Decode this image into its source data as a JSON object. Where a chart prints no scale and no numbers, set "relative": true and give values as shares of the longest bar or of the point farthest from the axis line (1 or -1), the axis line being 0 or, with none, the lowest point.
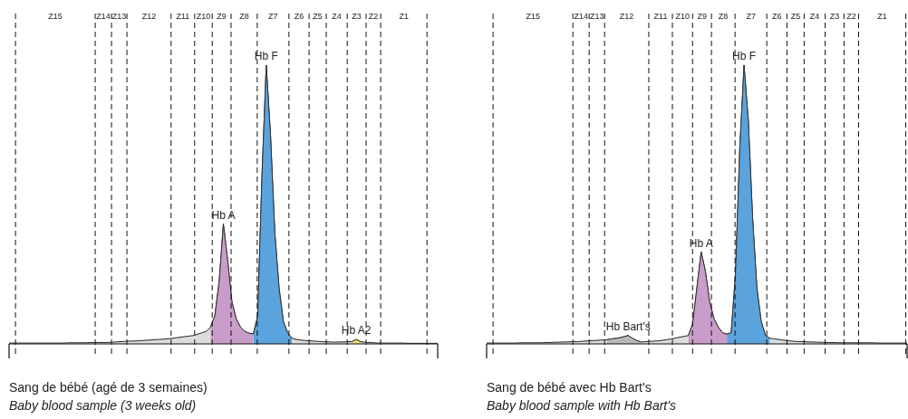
{
  "chart_data": [
    {
      "type": "area",
      "title": "Sang de bébé (agé de 3 semaines)",
      "subtitle": "Baby blood sample (3 weeks old)",
      "relative": true,
      "tick_labels": false,
      "grid": true,
      "categories": [
        null,
        null,
        null,
        null,
        null,
        null,
        null,
        null,
        null,
        null,
        null,
        null,
        null,
        null,
        null,
        null,
        null,
        null,
        null,
        null,
        null,
        null,
        null,
        null,
        null,
        null,
        null,
        null,
        null,
        null,
        null,
        null,
        null,
        null,
        null,
        null,
        null,
        null,
        null,
        null,
        null,
        null,
        null,
        null,
        null,
        null,
        null,
        null,
        null,
        null,
        null,
        null,
        null,
        null,
        null,
        null,
        null,
        null,
        null,
        null,
        null,
        null,
        null,
        null,
        null,
        null,
        null,
        null,
        null,
        null,
        null,
        null,
        null,
        null,
        null,
        null,
        null,
        null,
        null,
        null,
        null,
        null,
        null,
        null,
        null,
        null,
        null,
        null,
        null,
        null,
        null,
        null,
        null,
        null,
        null,
        null,
        null,
        null,
        null,
        null,
        null
      ],
      "annotations": [
        "Z15",
        "Z14",
        "Z13",
        "Z12",
        "Z11",
        "Z10",
        "Z9",
        "Z8",
        "Z7",
        "Z6",
        "Z5",
        "Z4",
        "Z3",
        "Z2",
        "Z1"
      ],
      "series": [
        {
          "color": "#dcdcdc",
          "values": [
            0.003,
            0.003,
            0.003,
            0.003,
            0.003,
            0.003,
            0.003,
            0.003,
            0.003,
            0.003,
            0.003,
            0.003,
            0.003,
            0.003,
            0.004,
            0.004,
            0.004,
            0.004,
            0.004,
            0.005,
            0.005,
            0.005,
            0.005,
            0.005,
            0.006,
            0.007,
            0.008,
            0.009,
            0.01,
            0.01,
            0.011,
            0.012,
            0.013,
            0.014,
            0.015,
            0.016,
            0.017,
            0.018,
            0.02,
            0.022,
            0.024,
            0.026,
            0.028,
            0.03,
            0.035,
            0.04,
            0.045,
            0.06,
            0.1,
            0.22,
            0.43,
            0.3,
            0.15,
            0.09,
            0.06,
            0.045,
            0.038,
            0.036,
            0.1,
            0.6,
            1,
            0.75,
            0.4,
            0.2,
            0.08,
            0.04,
            0.02,
            0.016,
            0.014,
            0.012,
            0.011,
            0.01,
            0.009,
            0.008,
            0.007,
            0.007,
            0.006,
            0.007,
            0.007,
            0.008,
            0.008,
            0.016,
            0.008,
            0.006,
            0.005,
            0.004,
            0.003,
            0.003,
            0.003,
            0.003,
            0.003,
            0.003,
            0.003,
            0.002,
            0.002,
            0.002,
            0.002,
            0.002,
            0.002,
            0.002,
            0.002
          ]
        },
        {
          "name": "Hb A",
          "color": "#c99cc9",
          "values": [
            null,
            null,
            null,
            null,
            null,
            null,
            null,
            null,
            null,
            null,
            null,
            null,
            null,
            null,
            null,
            null,
            null,
            null,
            null,
            null,
            null,
            null,
            null,
            null,
            null,
            null,
            null,
            null,
            null,
            null,
            null,
            null,
            null,
            null,
            null,
            null,
            null,
            null,
            null,
            null,
            null,
            null,
            null,
            null,
            null,
            null,
            null,
            0.06,
            0.1,
            0.22,
            0.43,
            0.3,
            0.15,
            0.09,
            0.06,
            0.045,
            0.038,
            0.036,
            null,
            null,
            null,
            null,
            null,
            null,
            null,
            null,
            null,
            null,
            null,
            null,
            null,
            null,
            null,
            null,
            null,
            null,
            null,
            null,
            null,
            null,
            null,
            null,
            null,
            null,
            null,
            null,
            null,
            null,
            null,
            null,
            null,
            null,
            null,
            null,
            null,
            null,
            null,
            null,
            null,
            null,
            null
          ]
        },
        {
          "name": "Hb F",
          "color": "#5ba3dc",
          "values": [
            null,
            null,
            null,
            null,
            null,
            null,
            null,
            null,
            null,
            null,
            null,
            null,
            null,
            null,
            null,
            null,
            null,
            null,
            null,
            null,
            null,
            null,
            null,
            null,
            null,
            null,
            null,
            null,
            null,
            null,
            null,
            null,
            null,
            null,
            null,
            null,
            null,
            null,
            null,
            null,
            null,
            null,
            null,
            null,
            null,
            null,
            null,
            null,
            null,
            null,
            null,
            null,
            null,
            null,
            null,
            null,
            null,
            0.036,
            0.1,
            0.6,
            1,
            0.75,
            0.4,
            0.2,
            0.08,
            0.04,
            0.02,
            null,
            null,
            null,
            null,
            null,
            null,
            null,
            null,
            null,
            null,
            null,
            null,
            null,
            null,
            null,
            null,
            null,
            null,
            null,
            null,
            null,
            null,
            null,
            null,
            null,
            null,
            null,
            null,
            null,
            null,
            null,
            null,
            null,
            null
          ]
        },
        {
          "name": "Hb A2",
          "color": "#e8e07a",
          "values": [
            null,
            null,
            null,
            null,
            null,
            null,
            null,
            null,
            null,
            null,
            null,
            null,
            null,
            null,
            null,
            null,
            null,
            null,
            null,
            null,
            null,
            null,
            null,
            null,
            null,
            null,
            null,
            null,
            null,
            null,
            null,
            null,
            null,
            null,
            null,
            null,
            null,
            null,
            null,
            null,
            null,
            null,
            null,
            null,
            null,
            null,
            null,
            null,
            null,
            null,
            null,
            null,
            null,
            null,
            null,
            null,
            null,
            null,
            null,
            null,
            null,
            null,
            null,
            null,
            null,
            null,
            null,
            null,
            null,
            null,
            null,
            null,
            null,
            null,
            null,
            null,
            null,
            null,
            null,
            null,
            0.008,
            0.016,
            0.008,
            null,
            null,
            null,
            null,
            null,
            null,
            null,
            null,
            null,
            null,
            null,
            null,
            null,
            null,
            null,
            null,
            null,
            null
          ]
        }
      ]
    },
    {
      "type": "area",
      "title": "Sang de bébé avec Hb Bart's",
      "subtitle": "Baby blood sample with Hb Bart's",
      "relative": true,
      "tick_labels": false,
      "grid": true,
      "categories": [
        null,
        null,
        null,
        null,
        null,
        null,
        null,
        null,
        null,
        null,
        null,
        null,
        null,
        null,
        null,
        null,
        null,
        null,
        null,
        null,
        null,
        null,
        null,
        null,
        null,
        null,
        null,
        null,
        null,
        null,
        null,
        null,
        null,
        null,
        null,
        null,
        null,
        null,
        null,
        null,
        null,
        null,
        null,
        null,
        null,
        null,
        null,
        null,
        null,
        null,
        null,
        null,
        null,
        null,
        null,
        null,
        null,
        null,
        null,
        null,
        null,
        null,
        null,
        null,
        null,
        null,
        null,
        null,
        null,
        null,
        null,
        null,
        null,
        null,
        null,
        null,
        null,
        null,
        null,
        null,
        null,
        null,
        null,
        null,
        null,
        null,
        null,
        null,
        null,
        null,
        null,
        null,
        null,
        null,
        null,
        null,
        null,
        null,
        null
      ],
      "annotations": [
        "Z15",
        "Z14",
        "Z13",
        "Z12",
        "Z11",
        "Z10",
        "Z9",
        "Z8",
        "Z7",
        "Z6",
        "Z5",
        "Z4",
        "Z3",
        "Z2",
        "Z1"
      ],
      "series": [
        {
          "color": "#dcdcdc",
          "values": [
            0.003,
            0.003,
            0.003,
            0.003,
            0.003,
            0.003,
            0.003,
            0.003,
            0.004,
            0.004,
            0.004,
            0.004,
            0.004,
            0.004,
            0.005,
            0.005,
            0.006,
            0.006,
            0.007,
            0.007,
            0.008,
            0.008,
            0.009,
            0.01,
            0.011,
            0.012,
            0.013,
            0.014,
            0.015,
            0.017,
            0.02,
            0.022,
            0.026,
            0.03,
            0.02,
            0.012,
            0.007,
            0.008,
            0.009,
            0.01,
            0.011,
            0.013,
            0.015,
            0.018,
            0.021,
            0.024,
            0.027,
            0.03,
            0.07,
            0.2,
            0.33,
            0.26,
            0.15,
            0.09,
            0.06,
            0.04,
            0.035,
            0.04,
            0.25,
            0.7,
            1,
            0.8,
            0.45,
            0.2,
            0.08,
            0.03,
            0.02,
            0.018,
            0.016,
            0.014,
            0.012,
            0.01,
            0.009,
            0.008,
            0.008,
            0.007,
            0.007,
            0.006,
            0.006,
            0.005,
            0.005,
            0.005,
            0.004,
            0.004,
            0.004,
            0.004,
            0.004,
            0.004,
            0.004,
            0.004,
            0.004,
            0.003,
            0.003,
            0.003,
            0.003,
            0.003,
            0.003,
            0.003,
            0.003
          ]
        },
        {
          "name": "Hb Bart's",
          "color": "#b8b8b8",
          "values": [
            null,
            null,
            null,
            null,
            null,
            null,
            null,
            null,
            null,
            null,
            null,
            null,
            null,
            null,
            null,
            null,
            null,
            null,
            null,
            null,
            null,
            null,
            null,
            null,
            null,
            null,
            null,
            null,
            0.015,
            0.017,
            0.02,
            0.022,
            0.026,
            0.03,
            0.02,
            0.012,
            0.007,
            null,
            null,
            null,
            null,
            null,
            null,
            null,
            null,
            null,
            null,
            null,
            null,
            null,
            null,
            null,
            null,
            null,
            null,
            null,
            null,
            null,
            null,
            null,
            null,
            null,
            null,
            null,
            null,
            null,
            null,
            null,
            null,
            null,
            null,
            null,
            null,
            null,
            null,
            null,
            null,
            null,
            null,
            null,
            null,
            null,
            null,
            null,
            null,
            null,
            null,
            null,
            null,
            null,
            null,
            null,
            null,
            null,
            null,
            null,
            null,
            null,
            null
          ]
        },
        {
          "name": "Hb A",
          "color": "#c99cc9",
          "values": [
            null,
            null,
            null,
            null,
            null,
            null,
            null,
            null,
            null,
            null,
            null,
            null,
            null,
            null,
            null,
            null,
            null,
            null,
            null,
            null,
            null,
            null,
            null,
            null,
            null,
            null,
            null,
            null,
            null,
            null,
            null,
            null,
            null,
            null,
            null,
            null,
            null,
            null,
            null,
            null,
            null,
            null,
            null,
            null,
            null,
            null,
            null,
            0.03,
            0.07,
            0.2,
            0.33,
            0.26,
            0.15,
            0.09,
            0.06,
            0.04,
            0.035,
            null,
            null,
            null,
            null,
            null,
            null,
            null,
            null,
            null,
            null,
            null,
            null,
            null,
            null,
            null,
            null,
            null,
            null,
            null,
            null,
            null,
            null,
            null,
            null,
            null,
            null,
            null,
            null,
            null,
            null,
            null,
            null,
            null,
            null,
            null,
            null,
            null,
            null,
            null,
            null,
            null,
            null
          ]
        },
        {
          "name": "Hb F",
          "color": "#5ba3dc",
          "values": [
            null,
            null,
            null,
            null,
            null,
            null,
            null,
            null,
            null,
            null,
            null,
            null,
            null,
            null,
            null,
            null,
            null,
            null,
            null,
            null,
            null,
            null,
            null,
            null,
            null,
            null,
            null,
            null,
            null,
            null,
            null,
            null,
            null,
            null,
            null,
            null,
            null,
            null,
            null,
            null,
            null,
            null,
            null,
            null,
            null,
            null,
            null,
            null,
            null,
            null,
            null,
            null,
            null,
            null,
            null,
            null,
            0.035,
            0.04,
            0.25,
            0.7,
            1,
            0.8,
            0.45,
            0.2,
            0.08,
            0.03,
            0.02,
            null,
            null,
            null,
            null,
            null,
            null,
            null,
            null,
            null,
            null,
            null,
            null,
            null,
            null,
            null,
            null,
            null,
            null,
            null,
            null,
            null,
            null,
            null,
            null,
            null,
            null,
            null,
            null,
            null,
            null,
            null,
            null
          ]
        }
      ]
    }
  ]
}
